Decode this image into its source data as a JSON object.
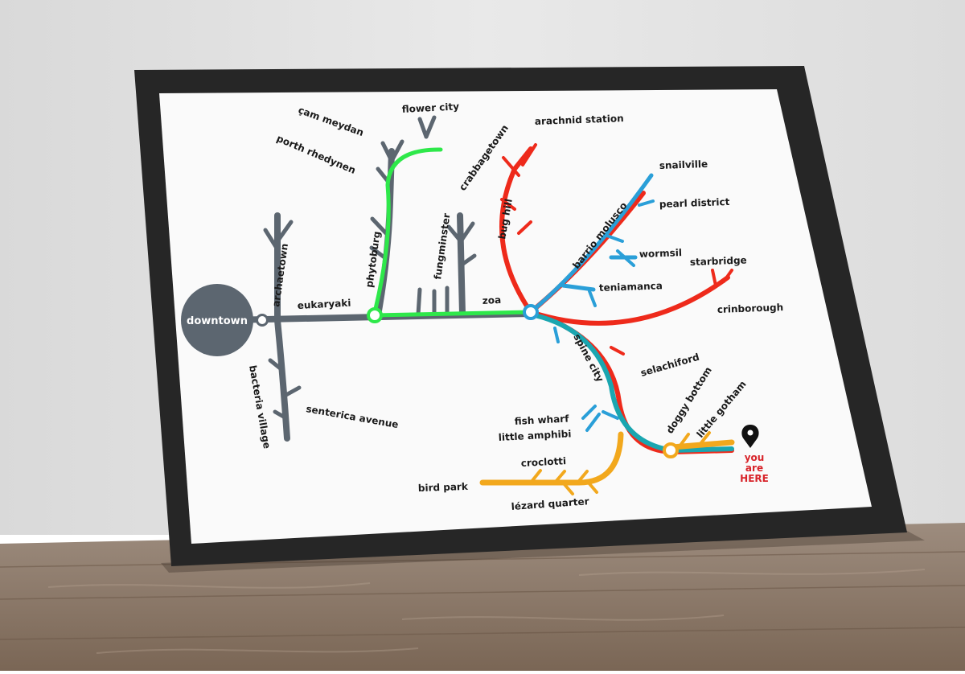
{
  "poster": {
    "hub": "downtown",
    "stations": {
      "eukaryaki": "eukaryaki",
      "archaetown": "archaetown",
      "bacteria_village": "bacteria village",
      "senterica_avenue": "senterica avenue",
      "cam_meydan": "çam meydan",
      "porth_rhedynen": "porth rhedynen",
      "flower_city": "flower city",
      "phytoburg": "phytoburg",
      "fungminster": "fungminster",
      "crabbagetown": "crabbagetown",
      "zoa": "zoa",
      "arachnid_station": "arachnid station",
      "bug_hill": "bug hill",
      "snailville": "snailville",
      "pearl_district": "pearl district",
      "barrio_molusco": "barrio molusco",
      "wormsil": "wormsil",
      "starbridge": "starbridge",
      "teniamanca": "teniamanca",
      "crinborough": "crinborough",
      "spine_city": "spine city",
      "selachiford": "selachiford",
      "fish_wharf": "fish wharf",
      "little_amphibi": "little amphibi",
      "doggy_bottom": "doggy bottom",
      "little_gotham": "little gotham",
      "croclotti": "croclotti",
      "bird_park": "bird park",
      "lezard_quarter": "lézard quarter"
    },
    "you_are_here": {
      "line1": "you",
      "line2": "are",
      "line3": "HERE"
    }
  },
  "colors": {
    "prokaryote_line": "#5c6670",
    "plant_line": "#2ee84a",
    "invertebrate_line": "#ee2a1b",
    "mollusc_line": "#2a9fd8",
    "vertebrate_line": "#1aa6b0",
    "bird_reptile_line": "#f2a81d",
    "here_text": "#d8242a"
  }
}
